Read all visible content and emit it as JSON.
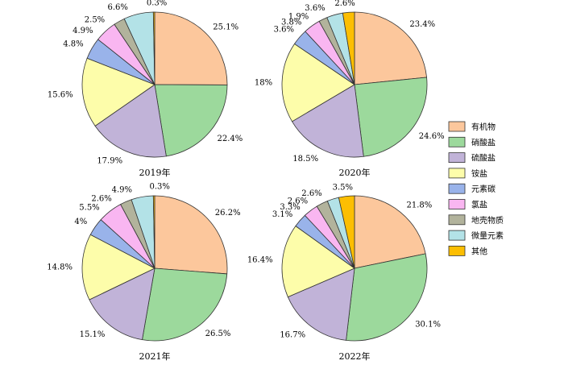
{
  "chart_data": [
    {
      "type": "pie",
      "title": "2019年",
      "categories": [
        "有机物",
        "硝酸盐",
        "硫酸盐",
        "铵盐",
        "元素碳",
        "氯盐",
        "地壳物质",
        "微量元素",
        "其他"
      ],
      "values": [
        25.1,
        22.4,
        17.9,
        15.6,
        4.8,
        4.9,
        2.5,
        6.6,
        0.3
      ],
      "labels": [
        "25.1%",
        "22.4%",
        "17.9%",
        "15.6%",
        "4.8%",
        "4.9%",
        "2.5%",
        "6.6%",
        "0.3%"
      ]
    },
    {
      "type": "pie",
      "title": "2020年",
      "categories": [
        "有机物",
        "硝酸盐",
        "硫酸盐",
        "铵盐",
        "元素碳",
        "氯盐",
        "地壳物质",
        "微量元素",
        "其他"
      ],
      "values": [
        23.4,
        24.6,
        18.5,
        18,
        3.6,
        3.8,
        1.9,
        3.6,
        2.6
      ],
      "labels": [
        "23.4%",
        "24.6%",
        "18.5%",
        "18%",
        "3.6%",
        "3.8%",
        "1.9%",
        "3.6%",
        "2.6%"
      ]
    },
    {
      "type": "pie",
      "title": "2021年",
      "categories": [
        "有机物",
        "硝酸盐",
        "硫酸盐",
        "铵盐",
        "元素碳",
        "氯盐",
        "地壳物质",
        "微量元素",
        "其他"
      ],
      "values": [
        26.2,
        26.5,
        15.1,
        14.8,
        4,
        5.5,
        2.6,
        4.9,
        0.3
      ],
      "labels": [
        "26.2%",
        "26.5%",
        "15.1%",
        "14.8%",
        "4%",
        "5.5%",
        "2.6%",
        "4.9%",
        "0.3%"
      ]
    },
    {
      "type": "pie",
      "title": "2022年",
      "categories": [
        "有机物",
        "硝酸盐",
        "硫酸盐",
        "铵盐",
        "元素碳",
        "氯盐",
        "地壳物质",
        "微量元素",
        "其他"
      ],
      "values": [
        21.8,
        30.1,
        16.7,
        16.4,
        3.1,
        3.3,
        2.6,
        2.6,
        3.5
      ],
      "labels": [
        "21.8%",
        "30.1%",
        "16.7%",
        "16.4%",
        "3.1%",
        "3.3%",
        "2.6%",
        "2.6%",
        "3.5%"
      ]
    }
  ],
  "legend": {
    "items": [
      "有机物",
      "硝酸盐",
      "硫酸盐",
      "铵盐",
      "元素碳",
      "氯盐",
      "地壳物质",
      "微量元素",
      "其他"
    ],
    "position": "right"
  },
  "colors": [
    "#fcc79c",
    "#9cd99c",
    "#c1b3d8",
    "#fdfdaa",
    "#99b3ea",
    "#f9b6f1",
    "#b2b39c",
    "#b3e2e7",
    "#fcbe02"
  ]
}
